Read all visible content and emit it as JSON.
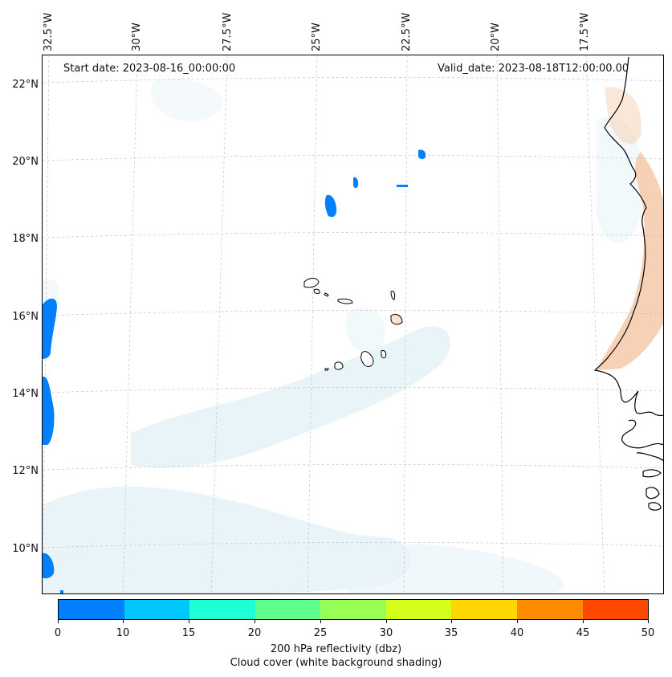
{
  "map": {
    "start_label": "Start date: 2023-08-16_00:00:00",
    "valid_label": "Valid_date: 2023-08-18T12:00:00.00",
    "lon_ticks": [
      "32.5°W",
      "30°W",
      "27.5°W",
      "25°W",
      "22.5°W",
      "20°W",
      "17.5°W"
    ],
    "lat_ticks": [
      "22°N",
      "20°N",
      "18°N",
      "16°N",
      "14°N",
      "12°N",
      "10°N"
    ],
    "colors": {
      "coastline": "#000000",
      "gridline": "#bbbbbb",
      "cloud_shading": "#d8ecf4",
      "land_warm": "#f6c9a8",
      "island_fill": "#f7e3d2"
    }
  },
  "colorbar": {
    "ticks": [
      "0",
      "10",
      "15",
      "20",
      "25",
      "30",
      "35",
      "40",
      "45",
      "50"
    ],
    "colors": [
      "#0080ff",
      "#00c8ff",
      "#1effd8",
      "#5eff8c",
      "#98ff56",
      "#d4ff1c",
      "#ffd700",
      "#ff8c00",
      "#ff4800"
    ],
    "title_line1": "200 hPa reflectivity (dbz)",
    "title_line2": "Cloud cover (white background shading)"
  }
}
